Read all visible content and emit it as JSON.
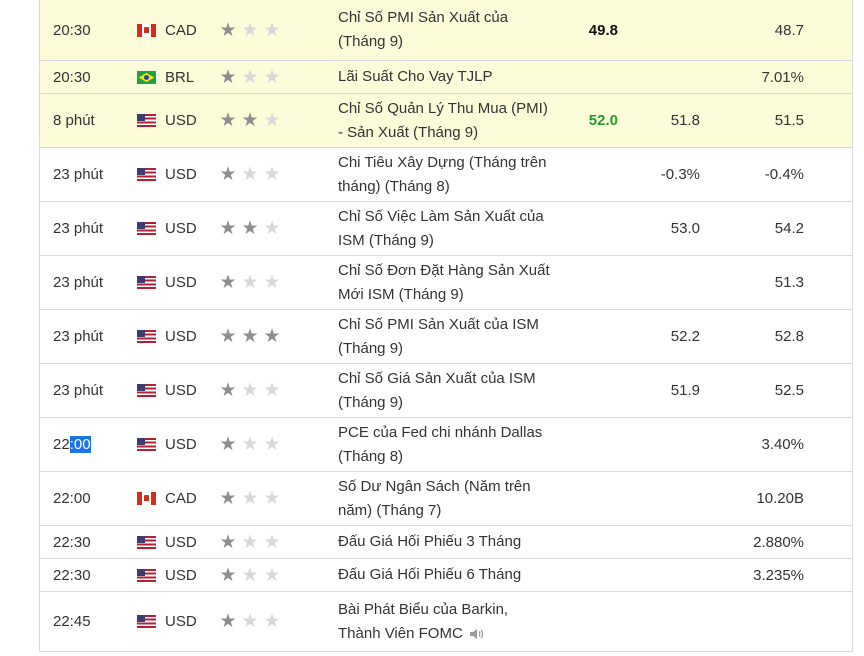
{
  "rows": [
    {
      "time": "20:30",
      "currency": "CAD",
      "flag": "ca",
      "stars": 1,
      "event": [
        "Chỉ Số PMI Sản Xuất của",
        "(Tháng 9)"
      ],
      "actual": "49.8",
      "actual_color": "",
      "forecast": "",
      "previous": "48.7",
      "highlight": true,
      "height": 61
    },
    {
      "time": "20:30",
      "currency": "BRL",
      "flag": "br",
      "stars": 1,
      "event": [
        "Lãi Suất Cho Vay TJLP"
      ],
      "actual": "",
      "actual_color": "",
      "forecast": "",
      "previous": "7.01%",
      "highlight": true,
      "height": 33
    },
    {
      "time": "8 phút",
      "currency": "USD",
      "flag": "us",
      "stars": 2,
      "event": [
        "Chỉ Số Quản Lý Thu Mua (PMI)",
        "- Sản Xuất (Tháng 9)"
      ],
      "actual": "52.0",
      "actual_color": "green",
      "forecast": "51.8",
      "previous": "51.5",
      "highlight": true,
      "height": 54
    },
    {
      "time": "23 phút",
      "currency": "USD",
      "flag": "us",
      "stars": 1,
      "event": [
        "Chi Tiêu Xây Dựng (Tháng trên",
        "tháng) (Tháng 8)"
      ],
      "actual": "",
      "actual_color": "",
      "forecast": "-0.3%",
      "previous": "-0.4%",
      "highlight": false,
      "height": 54
    },
    {
      "time": "23 phút",
      "currency": "USD",
      "flag": "us",
      "stars": 2,
      "event": [
        "Chỉ Số Việc Làm Sản Xuất của",
        "ISM (Tháng 9)"
      ],
      "actual": "",
      "actual_color": "",
      "forecast": "53.0",
      "previous": "54.2",
      "highlight": false,
      "height": 54
    },
    {
      "time": "23 phút",
      "currency": "USD",
      "flag": "us",
      "stars": 1,
      "event": [
        "Chỉ Số Đơn Đặt Hàng Sản Xuất",
        "Mới ISM (Tháng 9)"
      ],
      "actual": "",
      "actual_color": "",
      "forecast": "",
      "previous": "51.3",
      "highlight": false,
      "height": 54
    },
    {
      "time": "23 phút",
      "currency": "USD",
      "flag": "us",
      "stars": 3,
      "event": [
        "Chỉ Số PMI Sản Xuất của ISM",
        "(Tháng 9)"
      ],
      "actual": "",
      "actual_color": "",
      "forecast": "52.2",
      "previous": "52.8",
      "highlight": false,
      "height": 54
    },
    {
      "time": "23 phút",
      "currency": "USD",
      "flag": "us",
      "stars": 1,
      "event": [
        "Chỉ Số Giá Sản Xuất của ISM",
        "(Tháng 9)"
      ],
      "actual": "",
      "actual_color": "",
      "forecast": "51.9",
      "previous": "52.5",
      "highlight": false,
      "height": 54
    },
    {
      "time": "22:00",
      "time_pre": "22",
      "time_sel": ":00",
      "currency": "USD",
      "flag": "us",
      "stars": 1,
      "event": [
        "PCE của Fed chi nhánh Dallas",
        "(Tháng 8)"
      ],
      "actual": "",
      "actual_color": "",
      "forecast": "",
      "previous": "3.40%",
      "highlight": false,
      "height": 54
    },
    {
      "time": "22:00",
      "currency": "CAD",
      "flag": "ca",
      "stars": 1,
      "event": [
        "Số Dư Ngân Sách (Năm trên",
        "năm) (Tháng 7)"
      ],
      "actual": "",
      "actual_color": "",
      "forecast": "",
      "previous": "10.20B",
      "highlight": false,
      "height": 54
    },
    {
      "time": "22:30",
      "currency": "USD",
      "flag": "us",
      "stars": 1,
      "event": [
        "Đấu Giá Hối Phiếu 3 Tháng"
      ],
      "actual": "",
      "actual_color": "",
      "forecast": "",
      "previous": "2.880%",
      "highlight": false,
      "height": 33
    },
    {
      "time": "22:30",
      "currency": "USD",
      "flag": "us",
      "stars": 1,
      "event": [
        "Đấu Giá Hối Phiếu 6 Tháng"
      ],
      "actual": "",
      "actual_color": "",
      "forecast": "",
      "previous": "3.235%",
      "highlight": false,
      "height": 33
    },
    {
      "time": "22:45",
      "currency": "USD",
      "flag": "us",
      "stars": 1,
      "event": [
        "Bài Phát Biểu của Barkin,",
        "Thành Viên FOMC"
      ],
      "actual": "",
      "actual_color": "",
      "forecast": "",
      "previous": "",
      "highlight": false,
      "height": 60,
      "speaker": "speaker-icon"
    }
  ],
  "colors": {
    "highlight_row": "#fcfcd9",
    "actual_green": "#2a9a2a",
    "star_on": "#8f8f8f",
    "star_off": "#d9d9d9",
    "selection": "#1a73e8"
  }
}
